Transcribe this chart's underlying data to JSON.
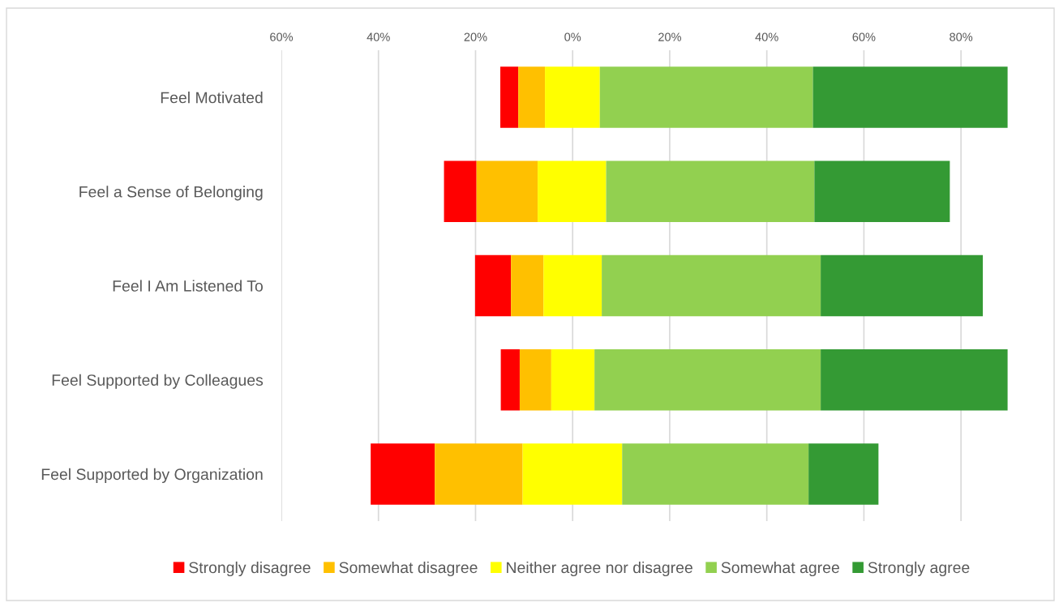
{
  "chart_data": {
    "type": "bar",
    "orientation": "horizontal",
    "categories": [
      "Feel Motivated",
      "Feel a Sense of Belonging",
      "Feel I Am Listened To",
      "Feel Supported by Colleagues",
      "Feel Supported by Organization"
    ],
    "series": [
      {
        "name": "Strongly disagree",
        "color": "#ff0000",
        "base": [
          -14.9,
          -26.5,
          -20.1,
          -14.8,
          -41.6
        ],
        "values": [
          3.7,
          6.7,
          7.4,
          3.9,
          13.2
        ]
      },
      {
        "name": "Somewhat disagree",
        "color": "#ffc000",
        "base": [
          -11.2,
          -19.8,
          -12.7,
          -10.9,
          -28.4
        ],
        "values": [
          5.5,
          12.6,
          6.7,
          6.5,
          18.1
        ]
      },
      {
        "name": "Neither agree nor disagree",
        "color": "#ffff00",
        "base": [
          -5.7,
          -7.2,
          -6.0,
          -4.4,
          -10.3
        ],
        "values": [
          11.3,
          14.1,
          12.0,
          8.9,
          20.5
        ]
      },
      {
        "name": "Somewhat agree",
        "color": "#92d050",
        "base": [
          5.6,
          6.9,
          6.0,
          4.5,
          10.2
        ],
        "values": [
          43.9,
          42.9,
          45.1,
          46.6,
          38.4
        ]
      },
      {
        "name": "Strongly agree",
        "color": "#349a34",
        "base": [
          49.5,
          49.8,
          51.1,
          51.1,
          48.6
        ],
        "values": [
          40.1,
          27.9,
          33.4,
          38.5,
          14.4
        ]
      }
    ],
    "xlim": [
      -60,
      90
    ],
    "xticks": [
      {
        "value": -60,
        "label": "60%"
      },
      {
        "value": -40,
        "label": "40%"
      },
      {
        "value": -20,
        "label": "20%"
      },
      {
        "value": 0,
        "label": "0%"
      },
      {
        "value": 20,
        "label": "20%"
      },
      {
        "value": 40,
        "label": "40%"
      },
      {
        "value": 60,
        "label": "60%"
      },
      {
        "value": 80,
        "label": "80%"
      }
    ],
    "grid": "x",
    "legend": "bottom"
  }
}
